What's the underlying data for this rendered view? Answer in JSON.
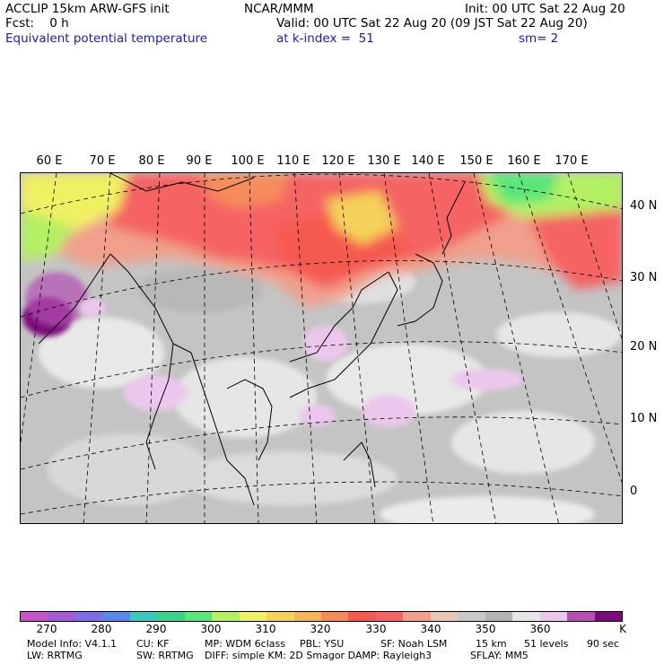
{
  "header": {
    "title_left": "ACCLIP 15km ARW-GFS init",
    "fcst": "Fcst:    0 h",
    "field": "Equivalent potential temperature",
    "center": "NCAR/MMM",
    "init": "Init: 00 UTC Sat 22 Aug 20",
    "valid": "Valid: 00 UTC Sat 22 Aug 20 (09 JST Sat 22 Aug 20)",
    "level": "at k-index =  51",
    "smooth": "sm= 2"
  },
  "map": {
    "projection": "lambert-conformal",
    "lon_labels": [
      "60 E",
      "70 E",
      "80 E",
      "90 E",
      "100 E",
      "110 E",
      "120 E",
      "130 E",
      "140 E",
      "150 E",
      "160 E",
      "170 E"
    ],
    "lat_labels": [
      "40 N",
      "30 N",
      "20 N",
      "10 N",
      "0"
    ]
  },
  "colorbar": {
    "colors": [
      "#c855c8",
      "#a35ad2",
      "#7d6ee6",
      "#5a87ee",
      "#3cc8be",
      "#3cd28c",
      "#5ae678",
      "#b4f064",
      "#f0f064",
      "#f5d25a",
      "#f5b45a",
      "#f58c5a",
      "#f55a50",
      "#f56464",
      "#f0a08c",
      "#e6c8b4",
      "#c8c8c8",
      "#b4b4b4",
      "#e6e6e6",
      "#ebc8eb",
      "#b450b4",
      "#7d0a7d"
    ],
    "ticks": [
      "270",
      "280",
      "290",
      "300",
      "310",
      "320",
      "330",
      "340",
      "350",
      "360"
    ],
    "unit": "K"
  },
  "footer": {
    "line1_left": "Model Info: V4.1.1",
    "line1_cu": "CU: KF",
    "line1_mp": "MP: WDM 6class",
    "line1_pbl": "PBL: YSU",
    "line1_sf": "SF: Noah LSM",
    "line1_res": "15 km",
    "line1_levels": "51 levels",
    "line1_dt": "90 sec",
    "line2_lw": "LW: RRTMG",
    "line2_sw": "SW: RRTMG",
    "line2_diff": "DIFF: simple KM: 2D Smagor DAMP: Rayleigh3",
    "line2_sflay": "SFLAY: MM5"
  }
}
